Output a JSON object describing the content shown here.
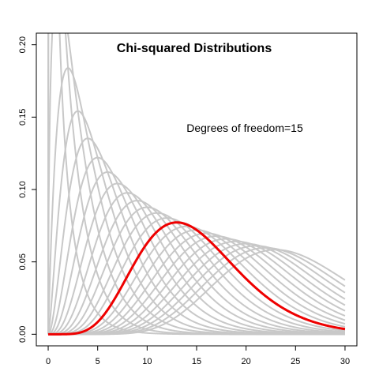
{
  "chart_data": {
    "type": "line",
    "title": "Chi-squared Distributions",
    "annotation": "Degrees of freedom=15",
    "xlabel": "",
    "ylabel": "",
    "xlim": [
      -1.2,
      31.2
    ],
    "ylim": [
      -0.008,
      0.208
    ],
    "x_ticks": [
      0,
      5,
      10,
      15,
      20,
      25,
      30
    ],
    "y_ticks": [
      0.0,
      0.05,
      0.1,
      0.15,
      0.2
    ],
    "y_tick_labels": [
      "0.00",
      "0.05",
      "0.10",
      "0.15",
      "0.20"
    ],
    "x_range": [
      0,
      30
    ],
    "background_series": {
      "distribution": "chi-squared",
      "degrees_of_freedom": [
        1,
        2,
        3,
        4,
        5,
        6,
        7,
        8,
        9,
        10,
        11,
        12,
        13,
        14,
        15,
        16,
        17,
        18,
        19,
        20,
        21,
        22,
        23,
        24,
        25
      ],
      "color": "#c8c8c8"
    },
    "highlight_series": {
      "distribution": "chi-squared",
      "degrees_of_freedom": 15,
      "color": "#ee0000"
    },
    "grid": false,
    "legend": "none"
  }
}
